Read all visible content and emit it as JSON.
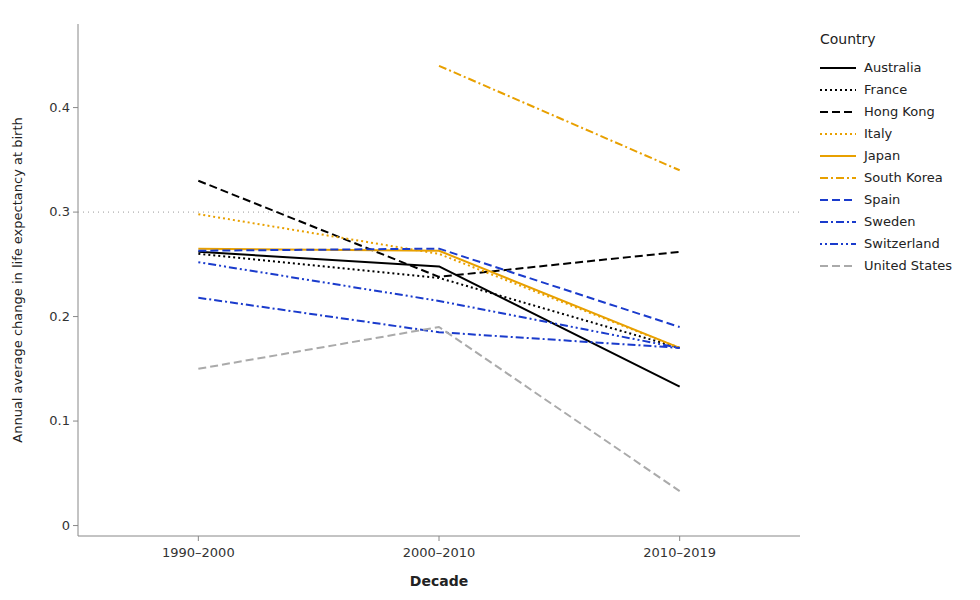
{
  "chart_data": {
    "type": "line",
    "xlabel": "Decade",
    "ylabel": "Annual average change in life expectancy at birth",
    "legend_title": "Country",
    "categories": [
      "1990–2000",
      "2000–2010",
      "2010–2019"
    ],
    "series": [
      {
        "name": "Australia",
        "color": "#000000",
        "line_style": "solid",
        "values": [
          0.262,
          0.248,
          0.133
        ]
      },
      {
        "name": "France",
        "color": "#000000",
        "line_style": "dotted",
        "values": [
          0.26,
          0.237,
          0.17
        ]
      },
      {
        "name": "Hong Kong",
        "color": "#000000",
        "line_style": "dashed",
        "values": [
          0.33,
          0.238,
          0.262
        ]
      },
      {
        "name": "Italy",
        "color": "#E8A000",
        "line_style": "dotted",
        "values": [
          0.298,
          0.26,
          0.17
        ]
      },
      {
        "name": "Japan",
        "color": "#E8A000",
        "line_style": "solid",
        "values": [
          0.265,
          0.263,
          0.17
        ]
      },
      {
        "name": "South Korea",
        "color": "#E8A000",
        "line_style": "dashdot",
        "values": [
          null,
          0.44,
          0.34
        ]
      },
      {
        "name": "Spain",
        "color": "#1A3BCC",
        "line_style": "dashed",
        "values": [
          0.263,
          0.265,
          0.19
        ]
      },
      {
        "name": "Sweden",
        "color": "#1A3BCC",
        "line_style": "dashdot",
        "values": [
          0.218,
          0.185,
          0.17
        ]
      },
      {
        "name": "Switzerland",
        "color": "#1A3BCC",
        "line_style": "dotdotdash",
        "values": [
          0.252,
          0.215,
          0.17
        ]
      },
      {
        "name": "United States",
        "color": "#AAAAAA",
        "line_style": "dashed",
        "values": [
          0.15,
          0.19,
          0.033
        ]
      }
    ],
    "reference_line": 0.3,
    "ylim": [
      -0.01,
      0.48
    ],
    "yticks": [
      0,
      0.1,
      0.2,
      0.3,
      0.4
    ],
    "grid": false,
    "legend": "right"
  }
}
